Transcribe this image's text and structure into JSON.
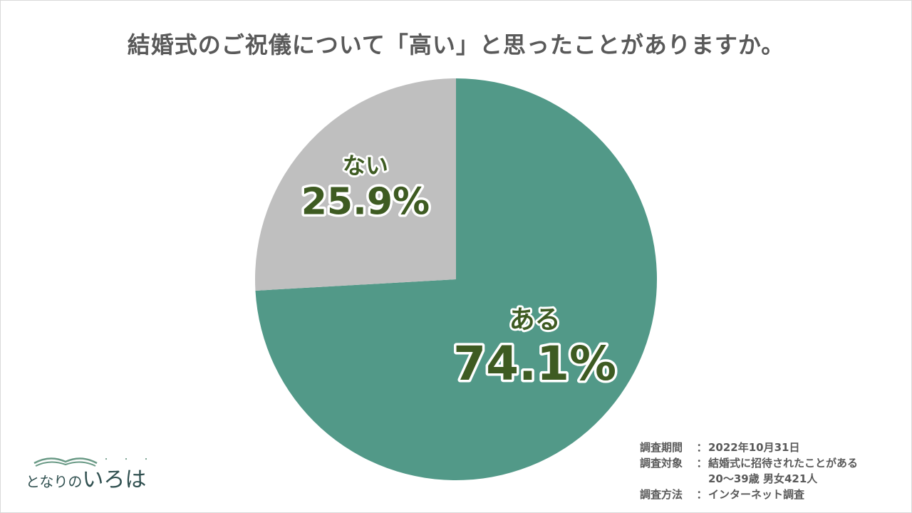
{
  "chart_data": {
    "type": "pie",
    "title": "結婚式のご祝儀について「高い」と思ったことがありますか。",
    "slices": [
      {
        "label": "ある",
        "value": 74.1,
        "display": "74.1%",
        "color": "#529988"
      },
      {
        "label": "ない",
        "value": 25.9,
        "display": "25.9%",
        "color": "#bfbfbf"
      }
    ],
    "start": "12 o'clock",
    "direction": "clockwise",
    "label_color": "#3e5b22"
  },
  "survey": {
    "period_label": "調査期間",
    "period_value": "2022年10月31日",
    "target_label": "調査対象",
    "target_value_1": "結婚式に招待されたことがある",
    "target_value_2": "20〜39歳 男女421人",
    "method_label": "調査方法",
    "method_value": "インターネット調査",
    "separator": "："
  },
  "logo": {
    "text_small": "となりの",
    "text_big": "いろは",
    "dots": "・・・"
  }
}
